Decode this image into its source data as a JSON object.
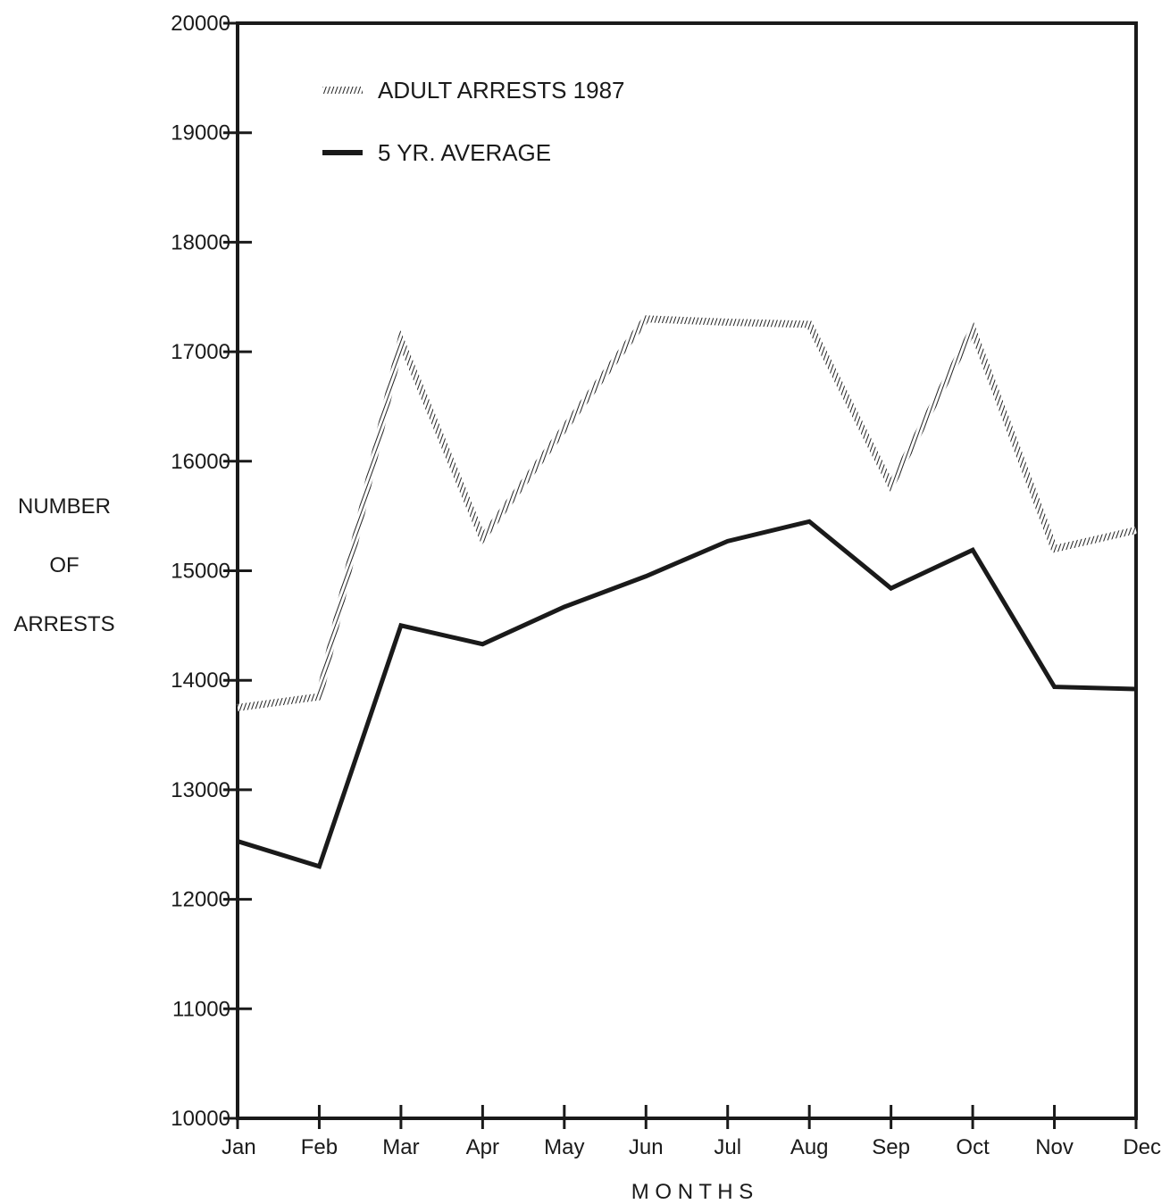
{
  "chart_data": {
    "type": "line",
    "title": "",
    "xlabel": "M O N T H S",
    "ylabel_lines": [
      "NUMBER",
      "OF",
      "ARRESTS"
    ],
    "categories": [
      "Jan",
      "Feb",
      "Mar",
      "Apr",
      "May",
      "Jun",
      "Jul",
      "Aug",
      "Sep",
      "Oct",
      "Nov",
      "Dec"
    ],
    "ylim": [
      10000,
      20000
    ],
    "yticks": [
      "10000",
      "11000",
      "12000",
      "13000",
      "14000",
      "15000",
      "16000",
      "17000",
      "18000",
      "19000",
      "20000"
    ],
    "legend_position": "top-left",
    "grid": false,
    "series": [
      {
        "name": "ADULT ARRESTS 1987",
        "style": "hatched",
        "color": "#333333",
        "values": [
          13750,
          13850,
          17100,
          15300,
          16300,
          17300,
          17270,
          17250,
          15780,
          17200,
          15200,
          15370
        ]
      },
      {
        "name": "5 YR. AVERAGE",
        "style": "solid",
        "color": "#1a1a1a",
        "values": [
          12530,
          12300,
          14500,
          14330,
          14670,
          14950,
          15270,
          15450,
          14840,
          15190,
          13940,
          13920
        ]
      }
    ]
  }
}
